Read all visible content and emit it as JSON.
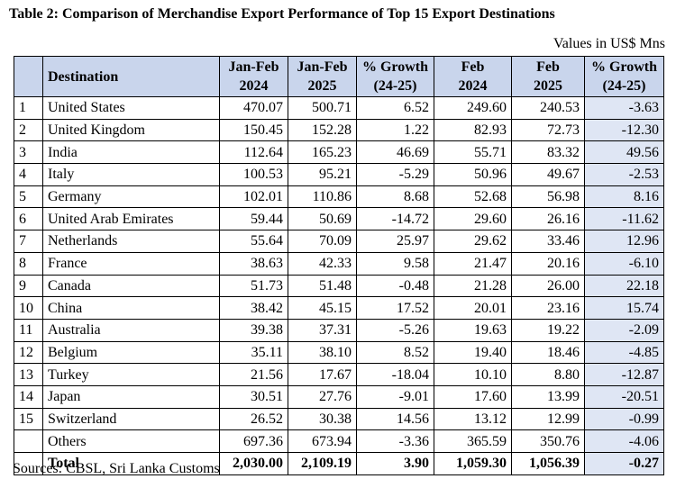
{
  "title": "Table 2: Comparison of Merchandise Export Performance of Top 15 Export Destinations",
  "units": "Values in US$ Mns",
  "headers": {
    "index": "",
    "destination": "Destination",
    "jf2024_l1": "Jan-Feb",
    "jf2024_l2": "2024",
    "jf2025_l1": "Jan-Feb",
    "jf2025_l2": "2025",
    "g1_l1": "% Growth",
    "g1_l2": "(24-25)",
    "f2024_l1": "Feb",
    "f2024_l2": "2024",
    "f2025_l1": "Feb",
    "f2025_l2": "2025",
    "g2_l1": "% Growth",
    "g2_l2": "(24-25)"
  },
  "rows": [
    {
      "idx": "1",
      "dest": "United States",
      "jf24": "470.07",
      "jf25": "500.71",
      "g1": "6.52",
      "f24": "249.60",
      "f25": "240.53",
      "g2": "-3.63"
    },
    {
      "idx": "2",
      "dest": "United Kingdom",
      "jf24": "150.45",
      "jf25": "152.28",
      "g1": "1.22",
      "f24": "82.93",
      "f25": "72.73",
      "g2": "-12.30"
    },
    {
      "idx": "3",
      "dest": "India",
      "jf24": "112.64",
      "jf25": "165.23",
      "g1": "46.69",
      "f24": "55.71",
      "f25": "83.32",
      "g2": "49.56"
    },
    {
      "idx": "4",
      "dest": "Italy",
      "jf24": "100.53",
      "jf25": "95.21",
      "g1": "-5.29",
      "f24": "50.96",
      "f25": "49.67",
      "g2": "-2.53"
    },
    {
      "idx": "5",
      "dest": "Germany",
      "jf24": "102.01",
      "jf25": "110.86",
      "g1": "8.68",
      "f24": "52.68",
      "f25": "56.98",
      "g2": "8.16"
    },
    {
      "idx": "6",
      "dest": "United Arab Emirates",
      "jf24": "59.44",
      "jf25": "50.69",
      "g1": "-14.72",
      "f24": "29.60",
      "f25": "26.16",
      "g2": "-11.62"
    },
    {
      "idx": "7",
      "dest": "Netherlands",
      "jf24": "55.64",
      "jf25": "70.09",
      "g1": "25.97",
      "f24": "29.62",
      "f25": "33.46",
      "g2": "12.96"
    },
    {
      "idx": "8",
      "dest": "France",
      "jf24": "38.63",
      "jf25": "42.33",
      "g1": "9.58",
      "f24": "21.47",
      "f25": "20.16",
      "g2": "-6.10"
    },
    {
      "idx": "9",
      "dest": "Canada",
      "jf24": "51.73",
      "jf25": "51.48",
      "g1": "-0.48",
      "f24": "21.28",
      "f25": "26.00",
      "g2": "22.18"
    },
    {
      "idx": "10",
      "dest": "China",
      "jf24": "38.42",
      "jf25": "45.15",
      "g1": "17.52",
      "f24": "20.01",
      "f25": "23.16",
      "g2": "15.74"
    },
    {
      "idx": "11",
      "dest": "Australia",
      "jf24": "39.38",
      "jf25": "37.31",
      "g1": "-5.26",
      "f24": "19.63",
      "f25": "19.22",
      "g2": "-2.09"
    },
    {
      "idx": "12",
      "dest": "Belgium",
      "jf24": "35.11",
      "jf25": "38.10",
      "g1": "8.52",
      "f24": "19.40",
      "f25": "18.46",
      "g2": "-4.85"
    },
    {
      "idx": "13",
      "dest": "Turkey",
      "jf24": "21.56",
      "jf25": "17.67",
      "g1": "-18.04",
      "f24": "10.10",
      "f25": "8.80",
      "g2": "-12.87"
    },
    {
      "idx": "14",
      "dest": "Japan",
      "jf24": "30.51",
      "jf25": "27.76",
      "g1": "-9.01",
      "f24": "17.60",
      "f25": "13.99",
      "g2": "-20.51"
    },
    {
      "idx": "15",
      "dest": "Switzerland",
      "jf24": "26.52",
      "jf25": "30.38",
      "g1": "14.56",
      "f24": "13.12",
      "f25": "12.99",
      "g2": "-0.99"
    },
    {
      "idx": "",
      "dest": "Others",
      "jf24": "697.36",
      "jf25": "673.94",
      "g1": "-3.36",
      "f24": "365.59",
      "f25": "350.76",
      "g2": "-4.06"
    }
  ],
  "total": {
    "label": "Total",
    "jf24": "2,030.00",
    "jf25": "2,109.19",
    "g1": "3.90",
    "f24": "1,059.30",
    "f25": "1,056.39",
    "g2": "-0.27"
  },
  "sources": "Sources: CBSL, Sri Lanka Customs",
  "colors": {
    "header_bg": "#c9d5ec",
    "growth_col_bg": "#dfe6f4"
  }
}
